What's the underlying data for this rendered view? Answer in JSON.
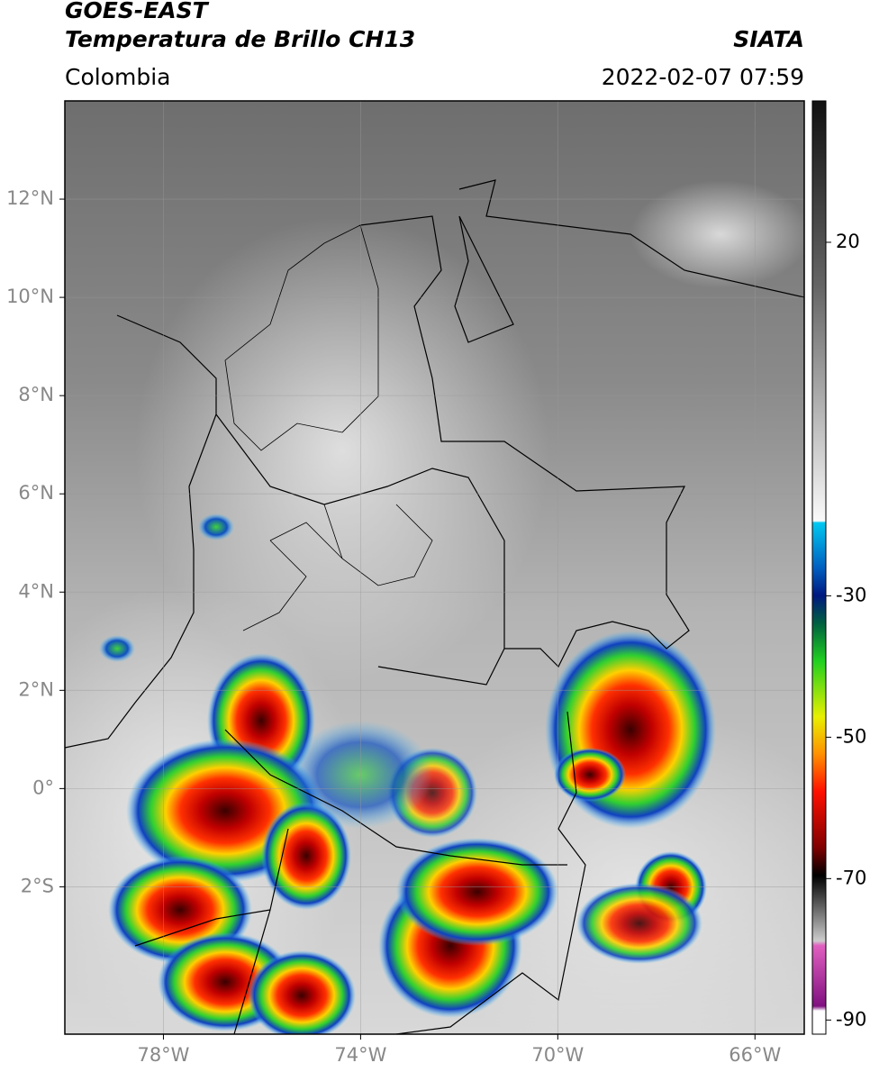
{
  "header": {
    "title": "GOES-EAST",
    "subtitle": "Temperatura de Brillo CH13",
    "region": "Colombia",
    "source": "SIATA",
    "datetime": "2022-02-07 07:59"
  },
  "map": {
    "xlim": [
      -80,
      -65
    ],
    "ylim": [
      -5,
      14
    ],
    "xticks": [
      {
        "value": -78,
        "label": "78°W"
      },
      {
        "value": -74,
        "label": "74°W"
      },
      {
        "value": -70,
        "label": "70°W"
      },
      {
        "value": -66,
        "label": "66°W"
      }
    ],
    "yticks": [
      {
        "value": 12,
        "label": "12°N"
      },
      {
        "value": 10,
        "label": "10°N"
      },
      {
        "value": 8,
        "label": "8°N"
      },
      {
        "value": 6,
        "label": "6°N"
      },
      {
        "value": 4,
        "label": "4°N"
      },
      {
        "value": 2,
        "label": "2°N"
      },
      {
        "value": 0,
        "label": "0°"
      },
      {
        "value": -2,
        "label": "2°S"
      }
    ],
    "grid": true
  },
  "colorbar": {
    "lim": [
      -92,
      40
    ],
    "ticks": [
      20,
      -30,
      -50,
      -70,
      -90
    ]
  }
}
